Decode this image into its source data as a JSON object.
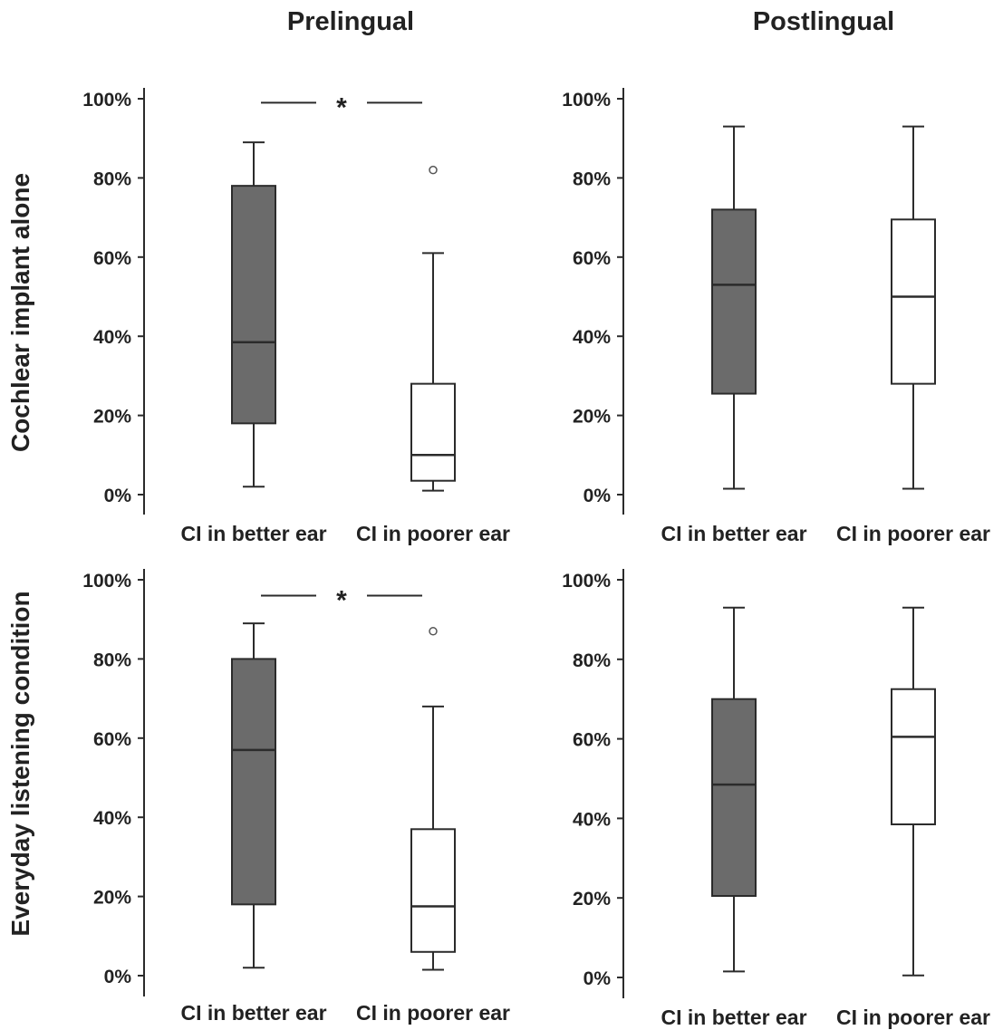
{
  "column_titles": [
    "Prelingual",
    "Postlingual"
  ],
  "row_titles": [
    "Cochlear implant alone",
    "Everyday listening condition"
  ],
  "significance_marker": "*",
  "colors": {
    "better_ear_fill": "#6b6b6b",
    "poorer_ear_fill": "#ffffff",
    "stroke": "#2b2b2b"
  },
  "chart_data": [
    {
      "type": "box",
      "row": "Cochlear implant alone",
      "column": "Prelingual",
      "categories": [
        "CI in better ear",
        "CI in poorer ear"
      ],
      "y_ticks": [
        "0%",
        "20%",
        "40%",
        "60%",
        "80%",
        "100%"
      ],
      "ylim": [
        0,
        100
      ],
      "boxes": [
        {
          "category": "CI in better ear",
          "min": 2,
          "q1": 18,
          "median": 38.5,
          "q3": 78,
          "max": 89,
          "outliers": [],
          "fill": "dark"
        },
        {
          "category": "CI in poorer ear",
          "min": 1,
          "q1": 3.5,
          "median": 10,
          "q3": 28,
          "max": 61,
          "outliers": [
            82
          ],
          "fill": "white"
        }
      ],
      "significance": {
        "label": "*",
        "y": 99
      }
    },
    {
      "type": "box",
      "row": "Cochlear implant alone",
      "column": "Postlingual",
      "categories": [
        "CI in better ear",
        "CI in poorer ear"
      ],
      "y_ticks": [
        "0%",
        "20%",
        "40%",
        "60%",
        "80%",
        "100%"
      ],
      "ylim": [
        0,
        100
      ],
      "boxes": [
        {
          "category": "CI in better ear",
          "min": 1.5,
          "q1": 25.5,
          "median": 53,
          "q3": 72,
          "max": 93,
          "outliers": [],
          "fill": "dark"
        },
        {
          "category": "CI in poorer ear",
          "min": 1.5,
          "q1": 28,
          "median": 50,
          "q3": 69.5,
          "max": 93,
          "outliers": [],
          "fill": "white"
        }
      ],
      "significance": null
    },
    {
      "type": "box",
      "row": "Everyday listening condition",
      "column": "Prelingual",
      "categories": [
        "CI in better ear",
        "CI in poorer ear"
      ],
      "y_ticks": [
        "0%",
        "20%",
        "40%",
        "60%",
        "80%",
        "100%"
      ],
      "ylim": [
        0,
        100
      ],
      "boxes": [
        {
          "category": "CI in better ear",
          "min": 2,
          "q1": 18,
          "median": 57,
          "q3": 80,
          "max": 89,
          "outliers": [],
          "fill": "dark"
        },
        {
          "category": "CI in poorer ear",
          "min": 1.5,
          "q1": 6,
          "median": 17.5,
          "q3": 37,
          "max": 68,
          "outliers": [
            87
          ],
          "fill": "white"
        }
      ],
      "significance": {
        "label": "*",
        "y": 96
      }
    },
    {
      "type": "box",
      "row": "Everyday listening condition",
      "column": "Postlingual",
      "categories": [
        "CI in better ear",
        "CI in poorer ear"
      ],
      "y_ticks": [
        "0%",
        "20%",
        "40%",
        "60%",
        "80%",
        "100%"
      ],
      "ylim": [
        0,
        100
      ],
      "boxes": [
        {
          "category": "CI in better ear",
          "min": 1.5,
          "q1": 20.5,
          "median": 48.5,
          "q3": 70,
          "max": 93,
          "outliers": [],
          "fill": "dark"
        },
        {
          "category": "CI in poorer ear",
          "min": 0.5,
          "q1": 38.5,
          "median": 60.5,
          "q3": 72.5,
          "max": 93,
          "outliers": [],
          "fill": "white"
        }
      ],
      "significance": null
    }
  ]
}
